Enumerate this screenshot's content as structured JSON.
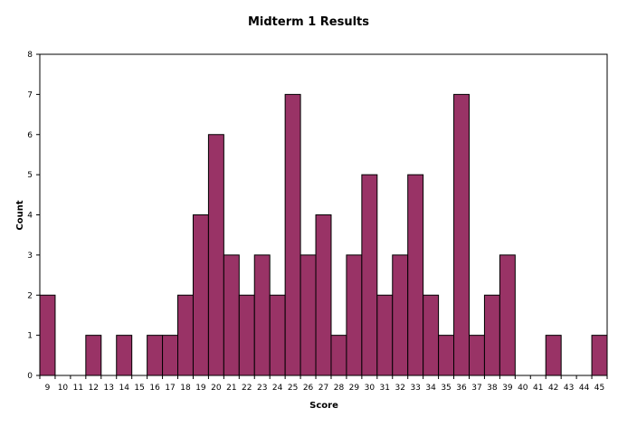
{
  "colors": {
    "bar": "#993366",
    "bar_stroke": "#000000",
    "axis": "#000000",
    "background": "#ffffff"
  },
  "chart_data": {
    "type": "bar",
    "title": "Midterm 1 Results",
    "xlabel": "Score",
    "ylabel": "Count",
    "ylim": [
      0,
      8
    ],
    "yticks": [
      "0",
      "1",
      "2",
      "3",
      "4",
      "5",
      "6",
      "7",
      "8"
    ],
    "grid": false,
    "legend": "none",
    "categories": [
      "9",
      "10",
      "11",
      "12",
      "13",
      "14",
      "15",
      "16",
      "17",
      "18",
      "19",
      "20",
      "21",
      "22",
      "23",
      "24",
      "25",
      "26",
      "27",
      "28",
      "29",
      "30",
      "31",
      "32",
      "33",
      "34",
      "35",
      "36",
      "37",
      "38",
      "39",
      "40",
      "41",
      "42",
      "43",
      "44",
      "45"
    ],
    "values": [
      2,
      0,
      0,
      1,
      0,
      1,
      0,
      1,
      1,
      2,
      4,
      6,
      3,
      2,
      3,
      2,
      7,
      3,
      4,
      1,
      3,
      5,
      2,
      3,
      5,
      2,
      1,
      7,
      1,
      2,
      3,
      0,
      0,
      1,
      0,
      0,
      1
    ]
  }
}
